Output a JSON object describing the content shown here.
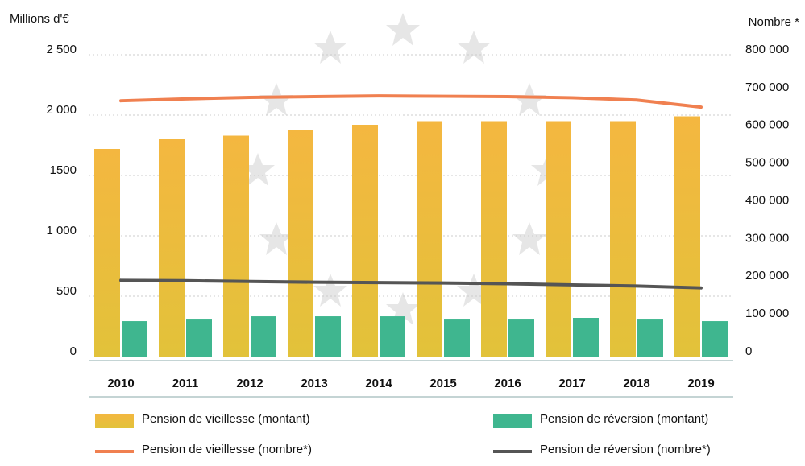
{
  "chart_data": {
    "type": "bar",
    "y_label": "Millions d'€",
    "y2_label": "Nombre *",
    "categories": [
      "2010",
      "2011",
      "2012",
      "2013",
      "2014",
      "2015",
      "2016",
      "2017",
      "2018",
      "2019"
    ],
    "series": [
      {
        "name": "Pension de vieillesse (montant)",
        "color": "#f2b83e",
        "kind": "bar",
        "values": [
          1720,
          1800,
          1830,
          1880,
          1920,
          1950,
          1950,
          1950,
          1950,
          1990
        ]
      },
      {
        "name": "Pension de réversion (montant)",
        "color": "#3fb68f",
        "kind": "bar",
        "values": [
          293,
          313,
          333,
          333,
          333,
          313,
          313,
          320,
          313,
          293
        ]
      },
      {
        "name": "Pension de vieillesse (nombre*)",
        "color": "#f08050",
        "kind": "line",
        "axis": "y2",
        "values": [
          678000,
          683000,
          687000,
          689000,
          691000,
          690000,
          689000,
          686000,
          680000,
          661000
        ]
      },
      {
        "name": "Pension de réversion (nombre*)",
        "color": "#555555",
        "kind": "line",
        "axis": "y2",
        "values": [
          202000,
          201000,
          199000,
          197000,
          196000,
          195000,
          193000,
          190000,
          187000,
          182000
        ]
      }
    ],
    "ylim": [
      0,
      2500
    ],
    "yticks": [
      0,
      500,
      {
        "value": 1000,
        "label": "1 000"
      },
      1500,
      {
        "value": 2000,
        "label": "2 000"
      },
      {
        "value": 2500,
        "label": "2 500"
      }
    ],
    "y2lim": [
      0,
      800000
    ],
    "y2ticks": [
      0,
      {
        "value": 100000,
        "label": "100 000"
      },
      {
        "value": 200000,
        "label": "200 000"
      },
      {
        "value": 300000,
        "label": "300 000"
      },
      {
        "value": 400000,
        "label": "400 000"
      },
      {
        "value": 500000,
        "label": "500 000"
      },
      {
        "value": 600000,
        "label": "600 000"
      },
      {
        "value": 700000,
        "label": "700 000"
      },
      {
        "value": 800000,
        "label": "800 000"
      }
    ],
    "grid": true
  }
}
